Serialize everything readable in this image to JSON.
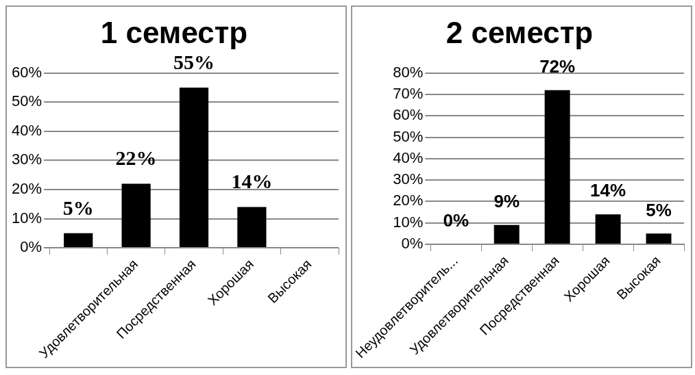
{
  "chart_data": [
    {
      "type": "bar",
      "title": "1 семестр",
      "categories": [
        null,
        "Удовлетворительная",
        "Посредственная",
        "Хорошая",
        "Высокая"
      ],
      "values": [
        5,
        22,
        55,
        14,
        null
      ],
      "value_labels": [
        "5%",
        "22%",
        "55%",
        "14%",
        null
      ],
      "color": "#000000",
      "ylim": [
        0,
        60
      ],
      "yticks": [
        {
          "value": 0,
          "label": "0%"
        },
        {
          "value": 10,
          "label": "10%"
        },
        {
          "value": 20,
          "label": "20%"
        },
        {
          "value": 30,
          "label": "30%"
        },
        {
          "value": 40,
          "label": "40%"
        },
        {
          "value": 50,
          "label": "50%"
        },
        {
          "value": 60,
          "label": "60%"
        }
      ],
      "grid": "y",
      "legend": false
    },
    {
      "type": "bar",
      "title": "2 семестр",
      "categories": [
        "Неудовлетворитель...",
        "Удовлетворительная",
        "Посредственная",
        "Хорошая",
        "Высокая"
      ],
      "values": [
        0,
        9,
        72,
        14,
        5
      ],
      "value_labels": [
        "0%",
        "9%",
        "72%",
        "14%",
        "5%"
      ],
      "color": "#000000",
      "ylim": [
        0,
        80
      ],
      "yticks": [
        {
          "value": 0,
          "label": "0%"
        },
        {
          "value": 10,
          "label": "10%"
        },
        {
          "value": 20,
          "label": "20%"
        },
        {
          "value": 30,
          "label": "30%"
        },
        {
          "value": 40,
          "label": "40%"
        },
        {
          "value": 50,
          "label": "50%"
        },
        {
          "value": 60,
          "label": "60%"
        },
        {
          "value": 70,
          "label": "70%"
        },
        {
          "value": 80,
          "label": "80%"
        }
      ],
      "grid": "y",
      "legend": false
    }
  ]
}
